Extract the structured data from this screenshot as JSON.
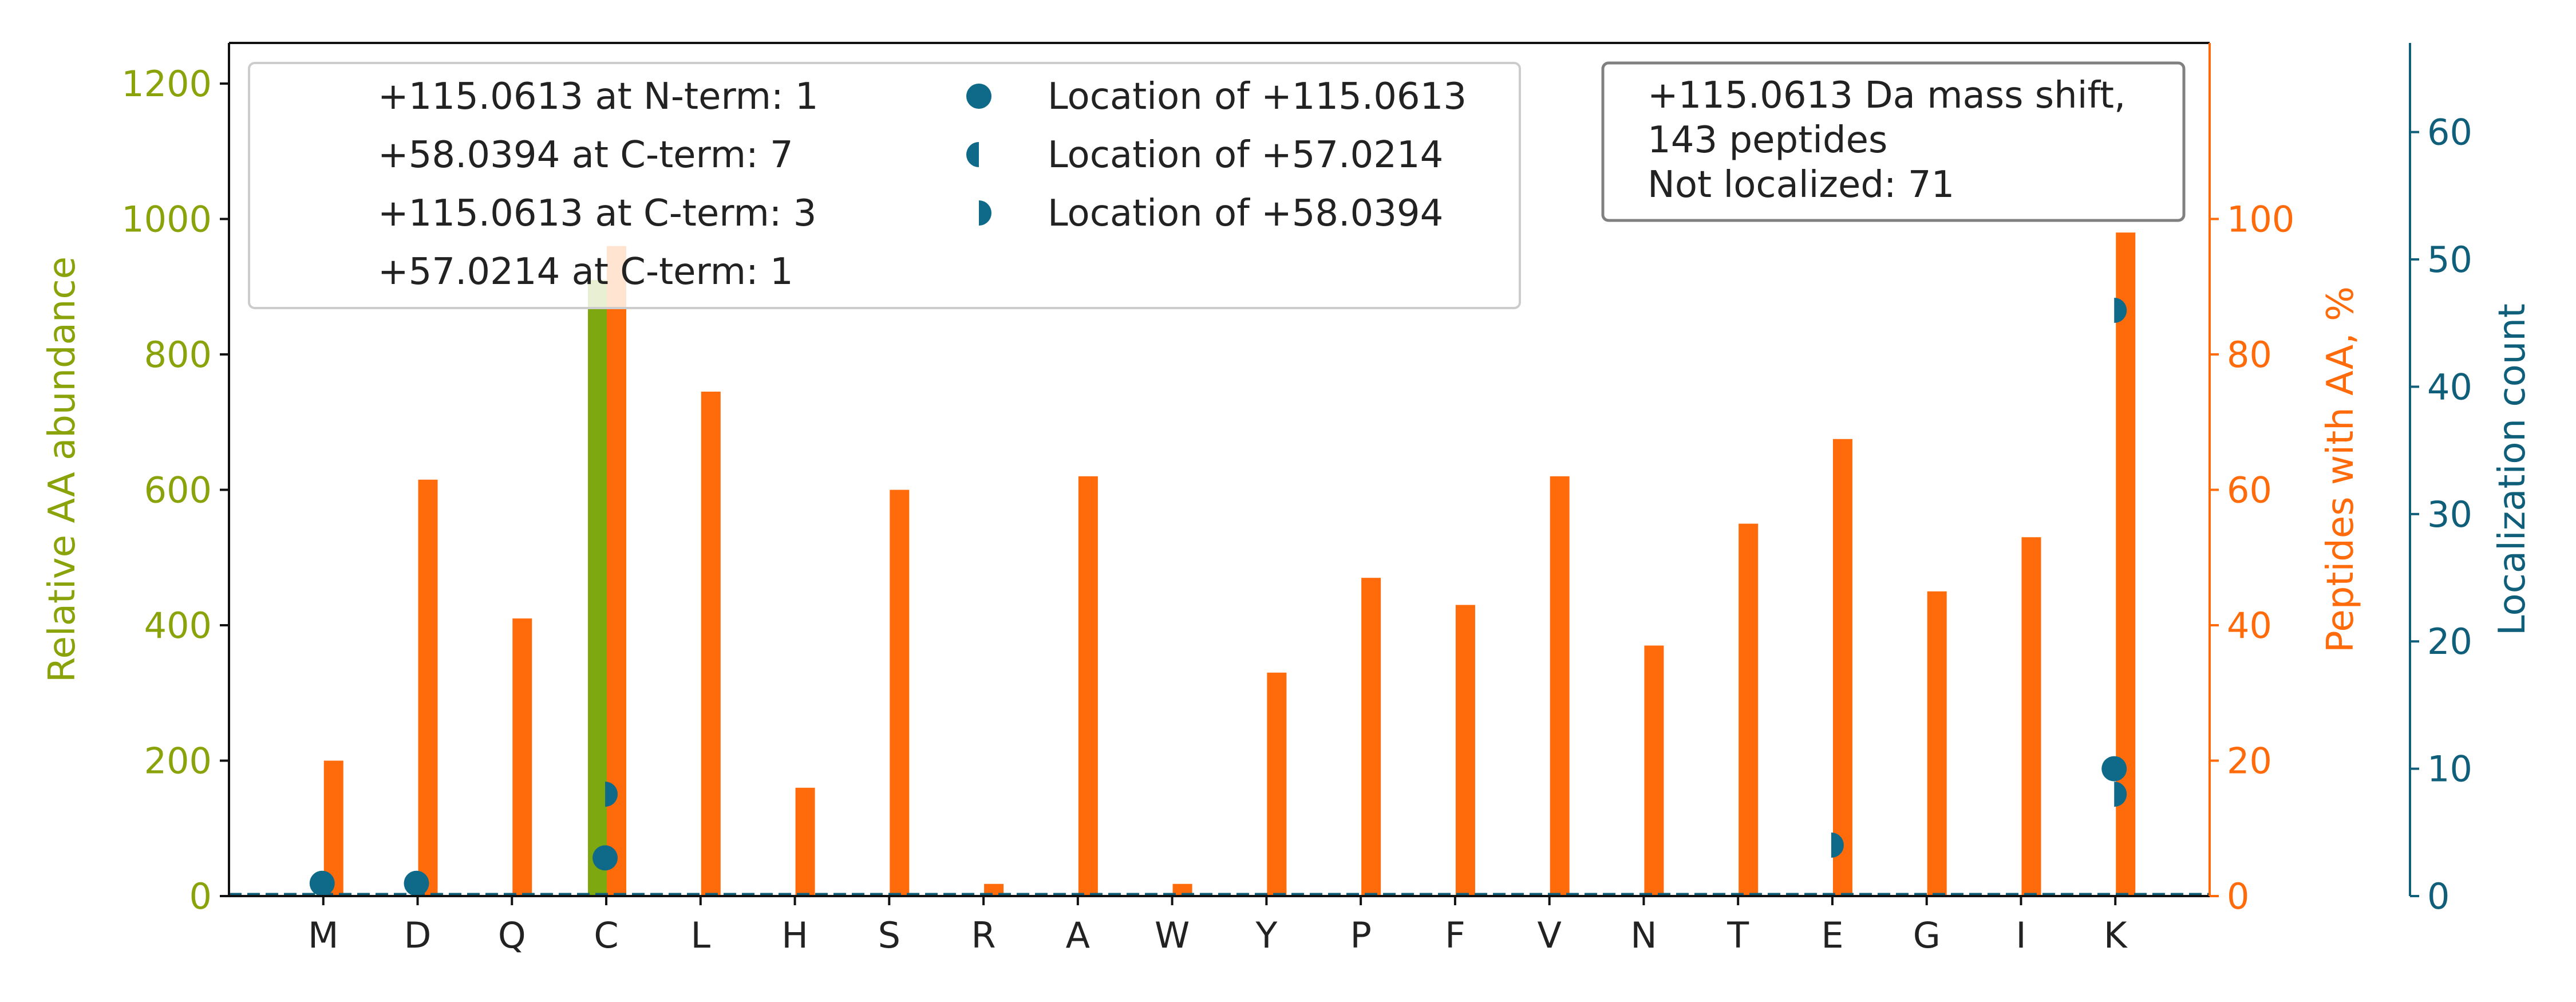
{
  "chart_data": {
    "type": "bar",
    "categories": [
      "M",
      "D",
      "Q",
      "C",
      "L",
      "H",
      "S",
      "R",
      "A",
      "W",
      "Y",
      "P",
      "F",
      "V",
      "N",
      "T",
      "E",
      "G",
      "I",
      "K"
    ],
    "axes": {
      "left": {
        "label": "Relative AA abundance",
        "ylim": [
          0,
          1260
        ],
        "ticks": [
          0,
          200,
          400,
          600,
          800,
          1000,
          1200
        ],
        "color": "#8aa30a"
      },
      "right1": {
        "label": "Peptides with AA, %",
        "ylim": [
          0,
          126
        ],
        "ticks": [
          0,
          20,
          40,
          60,
          80,
          100
        ],
        "color": "#ff6a0a"
      },
      "right2": {
        "label": "Localization count",
        "ylim": [
          0,
          67
        ],
        "ticks": [
          0,
          10,
          20,
          30,
          40,
          50,
          60
        ],
        "color": "#0f5e7a"
      }
    },
    "series": [
      {
        "name": "Relative AA abundance",
        "axis": "left",
        "color": "#7ea80f",
        "values": [
          0,
          0,
          0,
          910,
          0,
          0,
          0,
          0,
          0,
          0,
          0,
          0,
          0,
          0,
          0,
          0,
          0,
          0,
          0,
          0
        ]
      },
      {
        "name": "Peptides with AA, %",
        "axis": "right1",
        "color": "#ff6a0a",
        "values": [
          20,
          61.5,
          41,
          96,
          74.5,
          16,
          60,
          1.8,
          62,
          1.8,
          33,
          47,
          43,
          62,
          37,
          55,
          67.5,
          45,
          53,
          98
        ]
      }
    ],
    "localization_points": [
      {
        "category": "M",
        "count": 1,
        "marker": "full"
      },
      {
        "category": "D",
        "count": 1,
        "marker": "full"
      },
      {
        "category": "C",
        "count": 3,
        "marker": "full"
      },
      {
        "category": "C",
        "count": 8,
        "marker": "half-right"
      },
      {
        "category": "E",
        "count": 4,
        "marker": "half-right"
      },
      {
        "category": "K",
        "count": 10,
        "marker": "full"
      },
      {
        "category": "K",
        "count": 8,
        "marker": "half-right"
      },
      {
        "category": "K",
        "count": 46,
        "marker": "half-right"
      }
    ],
    "legend": {
      "terms": [
        "+115.0613 at N-term: 1",
        "+58.0394 at C-term: 7",
        "+115.0613 at C-term: 3",
        "+57.0214 at C-term: 1"
      ],
      "markers": [
        {
          "label": "Location of +115.0613",
          "marker": "full"
        },
        {
          "label": "Location of +57.0214",
          "marker": "half-left"
        },
        {
          "label": "Location of +58.0394",
          "marker": "half-right"
        }
      ]
    },
    "info_box": [
      "+115.0613 Da mass shift,",
      "143 peptides",
      "Not localized: 71"
    ],
    "marker_color": "#0f6a8a"
  }
}
